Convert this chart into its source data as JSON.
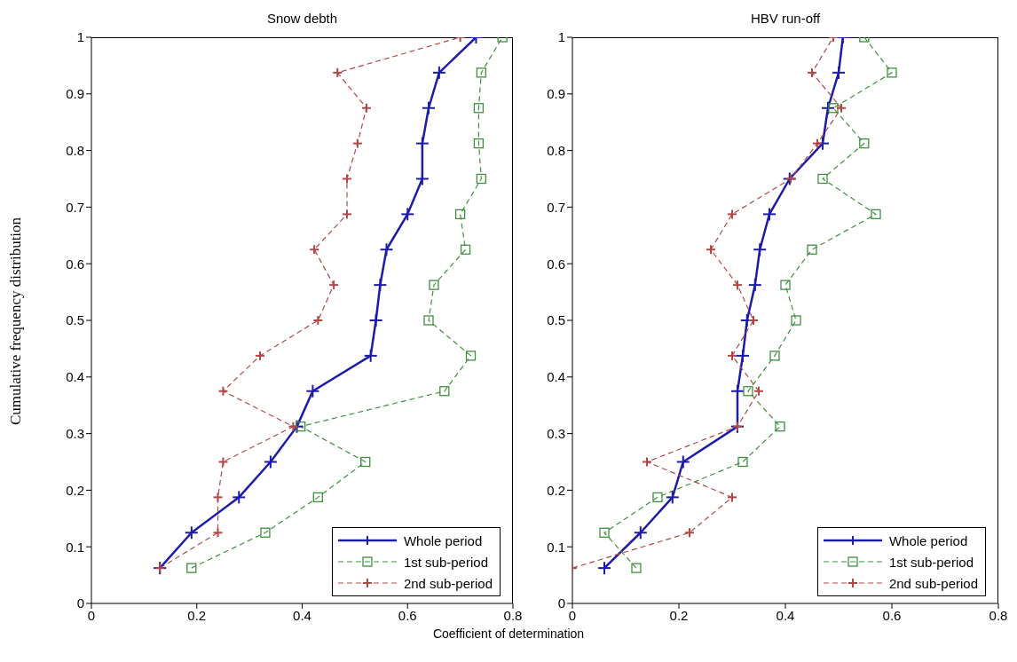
{
  "chart_data": [
    {
      "type": "line",
      "title": "Snow debth",
      "xlabel": "Coefficient of determination",
      "ylabel": "Cumulative frequency distribution",
      "xlim": [
        0,
        0.8
      ],
      "ylim": [
        0,
        1
      ],
      "xticks": [
        0,
        0.2,
        0.4,
        0.6,
        0.8
      ],
      "yticks": [
        0,
        0.1,
        0.2,
        0.3,
        0.4,
        0.5,
        0.6,
        0.7,
        0.8,
        0.9,
        1
      ],
      "legend": "bottom right",
      "series": [
        {
          "name": "Whole period",
          "color": "#1c1ca8",
          "marker": "cross",
          "line_style": "solid",
          "x": [
            0.13,
            0.19,
            0.28,
            0.34,
            0.39,
            0.42,
            0.53,
            0.54,
            0.548,
            0.56,
            0.6,
            0.628,
            0.628,
            0.64,
            0.66,
            0.73
          ],
          "values": [
            0.0625,
            0.125,
            0.1875,
            0.25,
            0.3125,
            0.375,
            0.4375,
            0.5,
            0.5625,
            0.625,
            0.6875,
            0.75,
            0.8125,
            0.875,
            0.9375,
            1
          ]
        },
        {
          "name": "1st sub-period",
          "color": "#3f8f3f",
          "marker": "square",
          "line_style": "dashed",
          "x": [
            0.19,
            0.33,
            0.43,
            0.52,
            0.397,
            0.67,
            0.72,
            0.64,
            0.65,
            0.71,
            0.7,
            0.74,
            0.735,
            0.735,
            0.74,
            0.78
          ],
          "values": [
            0.0625,
            0.125,
            0.1875,
            0.25,
            0.3125,
            0.375,
            0.4375,
            0.5,
            0.5625,
            0.625,
            0.6875,
            0.75,
            0.8125,
            0.875,
            0.9375,
            1
          ]
        },
        {
          "name": "2nd sub-period",
          "color": "#b04848",
          "marker": "cross",
          "line_style": "dashed",
          "x": [
            0.13,
            0.24,
            0.24,
            0.25,
            0.383,
            0.25,
            0.32,
            0.43,
            0.46,
            0.423,
            0.485,
            0.485,
            0.505,
            0.522,
            0.467,
            0.7
          ],
          "values": [
            0.0625,
            0.125,
            0.1875,
            0.25,
            0.3125,
            0.375,
            0.4375,
            0.5,
            0.5625,
            0.625,
            0.6875,
            0.75,
            0.8125,
            0.875,
            0.9375,
            1
          ]
        }
      ]
    },
    {
      "type": "line",
      "title": "HBV run-off",
      "xlim": [
        0,
        0.8
      ],
      "ylim": [
        0,
        1
      ],
      "xticks": [
        0,
        0.2,
        0.4,
        0.6,
        0.8
      ],
      "yticks": [
        0,
        0.1,
        0.2,
        0.3,
        0.4,
        0.5,
        0.6,
        0.7,
        0.8,
        0.9,
        1
      ],
      "legend": "bottom right",
      "series": [
        {
          "name": "Whole period",
          "color": "#1c1ca8",
          "marker": "cross",
          "line_style": "solid",
          "x": [
            0.06,
            0.128,
            0.188,
            0.208,
            0.31,
            0.31,
            0.32,
            0.328,
            0.343,
            0.352,
            0.37,
            0.408,
            0.47,
            0.48,
            0.5,
            0.508
          ],
          "values": [
            0.0625,
            0.125,
            0.1875,
            0.25,
            0.3125,
            0.375,
            0.4375,
            0.5,
            0.5625,
            0.625,
            0.6875,
            0.75,
            0.8125,
            0.875,
            0.9375,
            1
          ]
        },
        {
          "name": "1st sub-period",
          "color": "#3f8f3f",
          "marker": "square",
          "line_style": "dashed",
          "x": [
            0.12,
            0.06,
            0.16,
            0.32,
            0.39,
            0.33,
            0.38,
            0.42,
            0.4,
            0.45,
            0.57,
            0.47,
            0.548,
            0.49,
            0.6,
            0.548
          ],
          "values": [
            0.0625,
            0.125,
            0.1875,
            0.25,
            0.3125,
            0.375,
            0.4375,
            0.5,
            0.5625,
            0.625,
            0.6875,
            0.75,
            0.8125,
            0.875,
            0.9375,
            1
          ]
        },
        {
          "name": "2nd sub-period",
          "color": "#b04848",
          "marker": "cross",
          "line_style": "dashed",
          "x": [
            0.0,
            0.22,
            0.3,
            0.14,
            0.31,
            0.35,
            0.3,
            0.34,
            0.31,
            0.26,
            0.3,
            0.41,
            0.46,
            0.505,
            0.45,
            0.49
          ],
          "values": [
            0.0625,
            0.125,
            0.1875,
            0.25,
            0.3125,
            0.375,
            0.4375,
            0.5,
            0.5625,
            0.625,
            0.6875,
            0.75,
            0.8125,
            0.875,
            0.9375,
            1
          ]
        }
      ]
    }
  ]
}
